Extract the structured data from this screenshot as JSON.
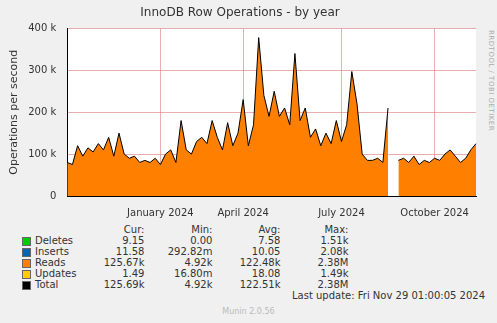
{
  "chart_data": {
    "type": "line",
    "title": "InnoDB Row Operations - by year",
    "y_label": "Operations per second",
    "side_text": "RRDTOOL / TOBI OETIKER",
    "last_update": "Last update: Fri Nov 29 01:00:05 2024",
    "footer": "Munin 2.0.56",
    "stacked": true,
    "grid": true,
    "ylim": [
      0,
      400000
    ],
    "yticks": [
      0,
      {
        "value": 100000,
        "label": "100 k"
      },
      {
        "value": 200000,
        "label": "200 k"
      },
      {
        "value": 300000,
        "label": "300 k"
      },
      {
        "value": 400000,
        "label": "400 k"
      }
    ],
    "categories": [
      null,
      null,
      null,
      null,
      null,
      null,
      null,
      null,
      null,
      null,
      null,
      null,
      null,
      null,
      null,
      null,
      null,
      null,
      "January 2024",
      null,
      null,
      null,
      null,
      null,
      null,
      null,
      null,
      null,
      null,
      null,
      null,
      null,
      null,
      null,
      "April 2024",
      null,
      null,
      null,
      null,
      null,
      null,
      null,
      null,
      null,
      null,
      null,
      null,
      null,
      null,
      null,
      null,
      null,
      null,
      "July 2024",
      null,
      null,
      null,
      null,
      null,
      null,
      null,
      null,
      null,
      null,
      null,
      null,
      null,
      null,
      null,
      null,
      null,
      "October 2024",
      null,
      null,
      null,
      null,
      null,
      null,
      null,
      null
    ],
    "summary_columns": [
      "Cur:",
      "Min:",
      "Avg:",
      "Max:"
    ],
    "series": [
      {
        "name": "Deletes",
        "color": "#00cc00",
        "type": "area",
        "summary": [
          "9.15",
          "0.00",
          "7.58",
          "1.51k"
        ],
        "values": [
          8,
          7,
          8,
          8,
          9,
          7,
          8,
          8,
          7,
          8,
          8,
          7,
          7,
          8,
          8,
          9,
          8,
          7,
          7,
          8,
          8,
          8,
          9,
          7,
          8,
          8,
          7,
          8,
          8,
          9,
          8,
          7,
          8,
          8,
          9,
          7,
          8,
          9,
          8,
          7,
          8,
          8,
          7,
          8,
          9,
          8,
          7,
          8,
          8,
          7,
          8,
          8,
          9,
          7,
          8,
          8,
          7,
          8,
          7,
          7,
          8,
          7,
          9,
          null,
          7,
          8,
          8,
          7,
          8,
          7,
          8,
          7,
          8,
          8,
          7,
          8,
          7,
          8,
          8,
          9
        ]
      },
      {
        "name": "Inserts",
        "color": "#0066b3",
        "type": "area",
        "summary": [
          "11.58",
          "292.82m",
          "10.05",
          "2.08k"
        ],
        "values": [
          10,
          9,
          11,
          10,
          10,
          9,
          11,
          10,
          9,
          10,
          10,
          9,
          10,
          11,
          10,
          10,
          9,
          10,
          10,
          11,
          10,
          10,
          11,
          9,
          10,
          10,
          9,
          10,
          11,
          10,
          10,
          9,
          10,
          11,
          10,
          9,
          10,
          11,
          10,
          9,
          10,
          10,
          9,
          10,
          11,
          10,
          9,
          10,
          10,
          9,
          10,
          10,
          11,
          9,
          10,
          10,
          9,
          10,
          10,
          9,
          10,
          9,
          11,
          null,
          9,
          10,
          10,
          9,
          10,
          9,
          10,
          9,
          10,
          10,
          9,
          10,
          9,
          10,
          11,
          12
        ]
      },
      {
        "name": "Reads",
        "color": "#ff8000",
        "type": "area",
        "summary": [
          "125.67k",
          "4.92k",
          "122.48k",
          "2.38M"
        ],
        "values": [
          80000,
          75000,
          120000,
          95000,
          115000,
          105000,
          125000,
          110000,
          140000,
          95000,
          150000,
          100000,
          90000,
          95000,
          80000,
          85000,
          80000,
          90000,
          75000,
          100000,
          110000,
          80000,
          180000,
          110000,
          100000,
          130000,
          140000,
          125000,
          180000,
          140000,
          110000,
          175000,
          120000,
          150000,
          230000,
          120000,
          170000,
          378000,
          240000,
          190000,
          250000,
          190000,
          210000,
          170000,
          340000,
          180000,
          210000,
          140000,
          160000,
          120000,
          150000,
          125000,
          180000,
          130000,
          170000,
          297000,
          220000,
          100000,
          85000,
          85000,
          90000,
          80000,
          210000,
          null,
          85000,
          90000,
          80000,
          95000,
          75000,
          85000,
          80000,
          90000,
          85000,
          100000,
          110000,
          95000,
          80000,
          90000,
          110000,
          125000
        ]
      },
      {
        "name": "Updates",
        "color": "#ffcc00",
        "type": "area",
        "summary": [
          "1.49",
          "16.80m",
          "18.08",
          "1.49k"
        ],
        "values": [
          18,
          17,
          19,
          18,
          18,
          17,
          19,
          18,
          17,
          18,
          18,
          17,
          18,
          19,
          18,
          18,
          17,
          18,
          18,
          19,
          18,
          18,
          19,
          17,
          18,
          18,
          17,
          18,
          19,
          18,
          18,
          17,
          18,
          19,
          18,
          17,
          18,
          19,
          18,
          17,
          18,
          18,
          17,
          18,
          19,
          18,
          17,
          18,
          18,
          17,
          18,
          18,
          19,
          17,
          18,
          18,
          17,
          18,
          18,
          17,
          18,
          17,
          19,
          null,
          17,
          18,
          18,
          17,
          18,
          17,
          18,
          17,
          18,
          18,
          17,
          18,
          17,
          18,
          2,
          1
        ]
      },
      {
        "name": "Total",
        "color": "#000000",
        "type": "line",
        "summary": [
          "125.69k",
          "4.92k",
          "122.51k",
          "2.38M"
        ],
        "values": [
          80036,
          75033,
          120038,
          95036,
          115037,
          105033,
          125038,
          110036,
          140033,
          95036,
          150036,
          100033,
          90035,
          95038,
          80036,
          85037,
          80034,
          90035,
          75035,
          100038,
          110036,
          80036,
          180039,
          110033,
          100036,
          130036,
          140033,
          125036,
          180038,
          140037,
          110033,
          175035,
          120036,
          150038,
          230037,
          120033,
          170036,
          378039,
          240036,
          190033,
          250036,
          190036,
          210033,
          170036,
          340039,
          180036,
          210033,
          140036,
          160036,
          120033,
          150036,
          125036,
          180039,
          130033,
          170036,
          297036,
          220033,
          100036,
          85035,
          85033,
          90036,
          80033,
          210039,
          null,
          85033,
          90036,
          80036,
          95033,
          75036,
          85033,
          80036,
          90033,
          85036,
          100036,
          110033,
          95036,
          80033,
          90036,
          110021,
          125022
        ]
      }
    ]
  }
}
